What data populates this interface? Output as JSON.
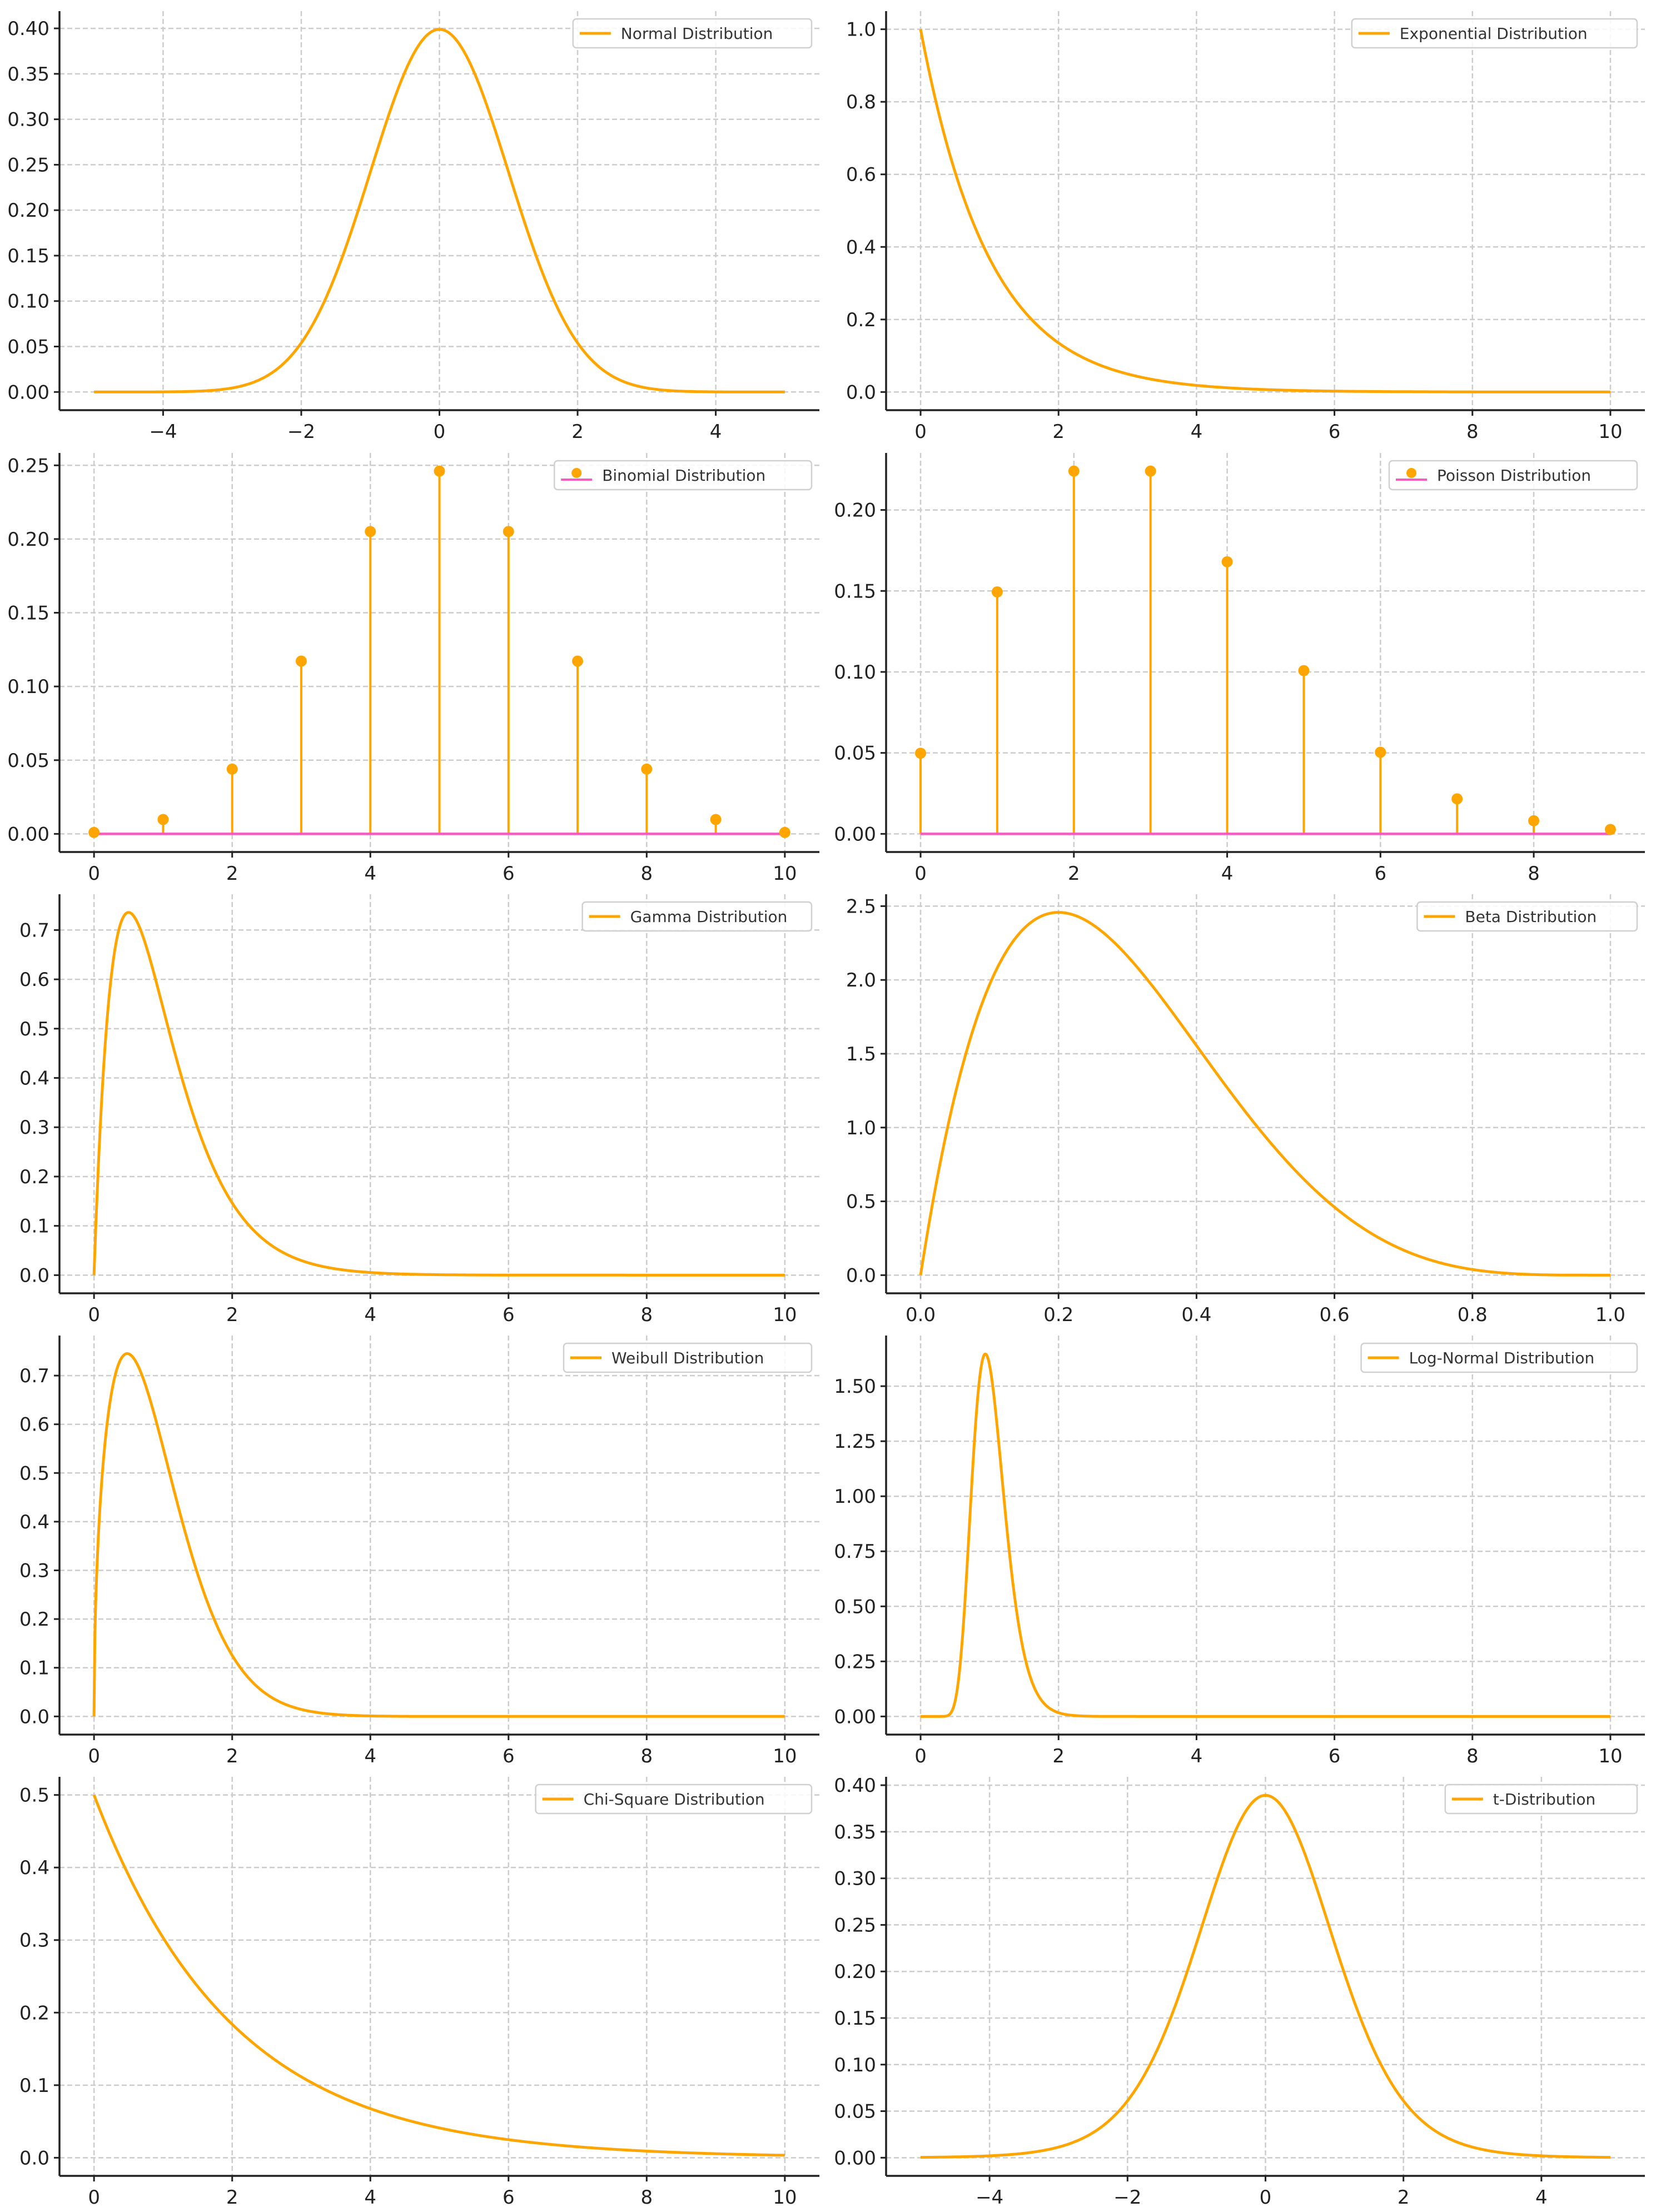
{
  "colors": {
    "line": "#FFA500",
    "baseline": "#F55CC0",
    "grid": "#cccccc",
    "axis": "#222222"
  },
  "chart_data": [
    {
      "type": "line",
      "legend": "Normal Distribution",
      "legend_position": "top-right",
      "grid": true,
      "distribution": "normal",
      "params": {
        "mu": 0,
        "sigma": 1
      },
      "x_range": [
        -5,
        5
      ],
      "xlim": [
        -5.5,
        5.5
      ],
      "ylim": [
        -0.02,
        0.419
      ],
      "xticks": [
        -4,
        -2,
        0,
        2,
        4
      ],
      "xtick_labels": [
        "−4",
        "−2",
        "0",
        "2",
        "4"
      ],
      "yticks": [
        0,
        0.05,
        0.1,
        0.15,
        0.2,
        0.25,
        0.3,
        0.35,
        0.4
      ],
      "ytick_labels": [
        "0.00",
        "0.05",
        "0.10",
        "0.15",
        "0.20",
        "0.25",
        "0.30",
        "0.35",
        "0.40"
      ]
    },
    {
      "type": "line",
      "legend": "Exponential Distribution",
      "legend_position": "top-right",
      "grid": true,
      "distribution": "exponential",
      "params": {
        "lambda": 1
      },
      "x_range": [
        0,
        10
      ],
      "xlim": [
        -0.5,
        10.5
      ],
      "ylim": [
        -0.05,
        1.05
      ],
      "xticks": [
        0,
        2,
        4,
        6,
        8,
        10
      ],
      "xtick_labels": [
        "0",
        "2",
        "4",
        "6",
        "8",
        "10"
      ],
      "yticks": [
        0,
        0.2,
        0.4,
        0.6,
        0.8,
        1.0
      ],
      "ytick_labels": [
        "0.0",
        "0.2",
        "0.4",
        "0.6",
        "0.8",
        "1.0"
      ]
    },
    {
      "type": "stem",
      "legend": "Binomial Distribution",
      "legend_position": "top-right",
      "grid": true,
      "x": [
        0,
        1,
        2,
        3,
        4,
        5,
        6,
        7,
        8,
        9,
        10
      ],
      "y": [
        0.00098,
        0.00977,
        0.04395,
        0.11719,
        0.20508,
        0.24609,
        0.20508,
        0.11719,
        0.04395,
        0.00977,
        0.00098
      ],
      "xlim": [
        -0.5,
        10.5
      ],
      "ylim": [
        -0.0123,
        0.2584
      ],
      "xticks": [
        0,
        2,
        4,
        6,
        8,
        10
      ],
      "xtick_labels": [
        "0",
        "2",
        "4",
        "6",
        "8",
        "10"
      ],
      "yticks": [
        0,
        0.05,
        0.1,
        0.15,
        0.2,
        0.25
      ],
      "ytick_labels": [
        "0.00",
        "0.05",
        "0.10",
        "0.15",
        "0.20",
        "0.25"
      ]
    },
    {
      "type": "stem",
      "legend": "Poisson Distribution",
      "legend_position": "top-right",
      "grid": true,
      "x": [
        0,
        1,
        2,
        3,
        4,
        5,
        6,
        7,
        8,
        9
      ],
      "y": [
        0.0498,
        0.1494,
        0.224,
        0.224,
        0.168,
        0.1008,
        0.0504,
        0.0216,
        0.0081,
        0.0027
      ],
      "xlim": [
        -0.45,
        9.45
      ],
      "ylim": [
        -0.0112,
        0.2352
      ],
      "xticks": [
        0,
        2,
        4,
        6,
        8
      ],
      "xtick_labels": [
        "0",
        "2",
        "4",
        "6",
        "8"
      ],
      "yticks": [
        0,
        0.05,
        0.1,
        0.15,
        0.2
      ],
      "ytick_labels": [
        "0.00",
        "0.05",
        "0.10",
        "0.15",
        "0.20"
      ]
    },
    {
      "type": "line",
      "legend": "Gamma Distribution",
      "legend_position": "top-right",
      "grid": true,
      "distribution": "gamma",
      "params": {
        "shape": 2,
        "scale": 0.5
      },
      "x_range": [
        0,
        10
      ],
      "xlim": [
        -0.5,
        10.5
      ],
      "ylim": [
        -0.0368,
        0.7726
      ],
      "xticks": [
        0,
        2,
        4,
        6,
        8,
        10
      ],
      "xtick_labels": [
        "0",
        "2",
        "4",
        "6",
        "8",
        "10"
      ],
      "yticks": [
        0,
        0.1,
        0.2,
        0.3,
        0.4,
        0.5,
        0.6,
        0.7
      ],
      "ytick_labels": [
        "0.0",
        "0.1",
        "0.2",
        "0.3",
        "0.4",
        "0.5",
        "0.6",
        "0.7"
      ]
    },
    {
      "type": "line",
      "legend": "Beta Distribution",
      "legend_position": "top-right",
      "grid": true,
      "distribution": "beta",
      "params": {
        "a": 2,
        "b": 5
      },
      "x_range": [
        0,
        1
      ],
      "xlim": [
        -0.05,
        1.05
      ],
      "ylim": [
        -0.1229,
        2.5805
      ],
      "xticks": [
        0,
        0.2,
        0.4,
        0.6,
        0.8,
        1.0
      ],
      "xtick_labels": [
        "0.0",
        "0.2",
        "0.4",
        "0.6",
        "0.8",
        "1.0"
      ],
      "yticks": [
        0,
        0.5,
        1.0,
        1.5,
        2.0,
        2.5
      ],
      "ytick_labels": [
        "0.0",
        "0.5",
        "1.0",
        "1.5",
        "2.0",
        "2.5"
      ]
    },
    {
      "type": "line",
      "legend": "Weibull Distribution",
      "legend_position": "top-right",
      "grid": true,
      "distribution": "weibull",
      "params": {
        "k": 1.5,
        "scale": 1
      },
      "x_range": [
        0,
        10
      ],
      "xlim": [
        -0.5,
        10.5
      ],
      "ylim": [
        -0.0373,
        0.7823
      ],
      "xticks": [
        0,
        2,
        4,
        6,
        8,
        10
      ],
      "xtick_labels": [
        "0",
        "2",
        "4",
        "6",
        "8",
        "10"
      ],
      "yticks": [
        0,
        0.1,
        0.2,
        0.3,
        0.4,
        0.5,
        0.6,
        0.7
      ],
      "ytick_labels": [
        "0.0",
        "0.1",
        "0.2",
        "0.3",
        "0.4",
        "0.5",
        "0.6",
        "0.7"
      ]
    },
    {
      "type": "line",
      "legend": "Log-Normal Distribution",
      "legend_position": "top-right",
      "grid": true,
      "distribution": "lognormal",
      "params": {
        "mu": 0,
        "sigma": 0.25
      },
      "x_range": [
        0,
        10
      ],
      "xlim": [
        -0.5,
        10.5
      ],
      "ylim": [
        -0.0824,
        1.73
      ],
      "xticks": [
        0,
        2,
        4,
        6,
        8,
        10
      ],
      "xtick_labels": [
        "0",
        "2",
        "4",
        "6",
        "8",
        "10"
      ],
      "yticks": [
        0,
        0.25,
        0.5,
        0.75,
        1.0,
        1.25,
        1.5
      ],
      "ytick_labels": [
        "0.00",
        "0.25",
        "0.50",
        "0.75",
        "1.00",
        "1.25",
        "1.50"
      ]
    },
    {
      "type": "line",
      "legend": "Chi-Square Distribution",
      "legend_position": "top-right",
      "grid": true,
      "distribution": "chi2",
      "params": {
        "df": 2
      },
      "x_range": [
        0,
        10
      ],
      "xlim": [
        -0.5,
        10.5
      ],
      "ylim": [
        -0.025,
        0.525
      ],
      "xticks": [
        0,
        2,
        4,
        6,
        8,
        10
      ],
      "xtick_labels": [
        "0",
        "2",
        "4",
        "6",
        "8",
        "10"
      ],
      "yticks": [
        0,
        0.1,
        0.2,
        0.3,
        0.4,
        0.5
      ],
      "ytick_labels": [
        "0.0",
        "0.1",
        "0.2",
        "0.3",
        "0.4",
        "0.5"
      ]
    },
    {
      "type": "line",
      "legend": "t-Distribution",
      "legend_position": "top-right",
      "grid": true,
      "distribution": "t",
      "params": {
        "df": 10
      },
      "x_range": [
        -5,
        5
      ],
      "xlim": [
        -5.5,
        5.5
      ],
      "ylim": [
        -0.0195,
        0.409
      ],
      "xticks": [
        -4,
        -2,
        0,
        2,
        4
      ],
      "xtick_labels": [
        "−4",
        "−2",
        "0",
        "2",
        "4"
      ],
      "yticks": [
        0,
        0.05,
        0.1,
        0.15,
        0.2,
        0.25,
        0.3,
        0.35,
        0.4
      ],
      "ytick_labels": [
        "0.00",
        "0.05",
        "0.10",
        "0.15",
        "0.20",
        "0.25",
        "0.30",
        "0.35",
        "0.40"
      ]
    }
  ]
}
